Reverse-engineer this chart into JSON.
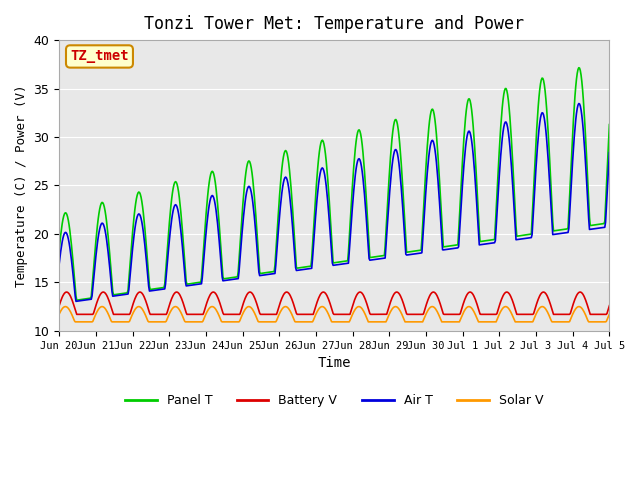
{
  "title": "Tonzi Tower Met: Temperature and Power",
  "xlabel": "Time",
  "ylabel": "Temperature (C) / Power (V)",
  "ylim": [
    10,
    40
  ],
  "bg_color": "#e8e8e8",
  "fig_color": "#ffffff",
  "grid_color": "#ffffff",
  "annotation_text": "TZ_tmet",
  "annotation_color": "#cc0000",
  "annotation_bg": "#ffffcc",
  "annotation_border": "#cc8800",
  "legend": [
    "Panel T",
    "Battery V",
    "Air T",
    "Solar V"
  ],
  "line_colors": [
    "#00cc00",
    "#dd0000",
    "#0000dd",
    "#ff9900"
  ],
  "xtick_labels": [
    "Jun 20",
    "Jun 21",
    "Jun 22",
    "Jun 23",
    "Jun 24",
    "Jun 25",
    "Jun 26",
    "Jun 27",
    "Jun 28",
    "Jun 29",
    "Jun 30",
    "Jul 1",
    "Jul 2",
    "Jul 3",
    "Jul 4",
    "Jul 5"
  ],
  "xtick_positions": [
    0,
    1,
    2,
    3,
    4,
    5,
    6,
    7,
    8,
    9,
    10,
    11,
    12,
    13,
    14,
    15
  ]
}
